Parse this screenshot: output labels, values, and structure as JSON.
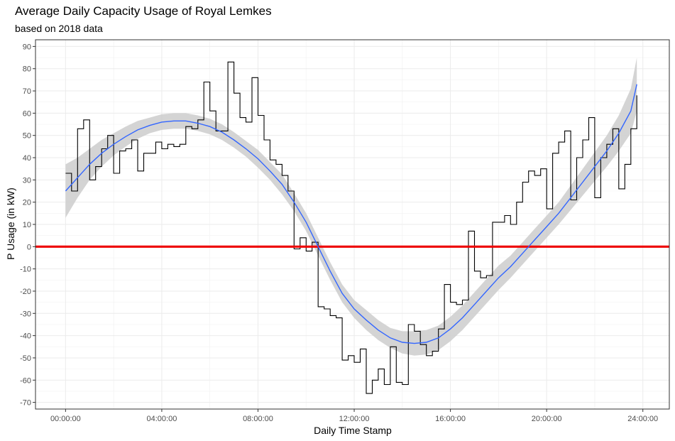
{
  "chart_data": {
    "type": "line",
    "title": "Average Daily Capacity Usage of Royal Lemkes",
    "subtitle": "based on 2018 data",
    "xlabel": "Daily Time Stamp",
    "ylabel": "P Usage (in kW)",
    "xlim_hours": [
      -1.25,
      25.1
    ],
    "ylim": [
      -73,
      93
    ],
    "x_ticks": [
      {
        "hour": 0,
        "label": "00:00:00"
      },
      {
        "hour": 4,
        "label": "04:00:00"
      },
      {
        "hour": 8,
        "label": "08:00:00"
      },
      {
        "hour": 12,
        "label": "12:00:00"
      },
      {
        "hour": 16,
        "label": "16:00:00"
      },
      {
        "hour": 20,
        "label": "20:00:00"
      },
      {
        "hour": 24,
        "label": "24:00:00"
      }
    ],
    "y_ticks": [
      90,
      80,
      70,
      60,
      50,
      40,
      30,
      20,
      10,
      0,
      -10,
      -20,
      -30,
      -40,
      -50,
      -60,
      -70
    ],
    "reference_line": {
      "y": 0,
      "color": "#ee0000"
    },
    "series": [
      {
        "type": "step",
        "color": "#000000",
        "step_hours": 0.25,
        "values": [
          33,
          25,
          53,
          57,
          30,
          36,
          44,
          50,
          33,
          43,
          44,
          48,
          34,
          42,
          42,
          47,
          44,
          46,
          45,
          46,
          54,
          53,
          57,
          74,
          61,
          52,
          52,
          83,
          69,
          58,
          56,
          76,
          59,
          48,
          39,
          37,
          32,
          25,
          -1,
          4,
          -2,
          2,
          -27,
          -28,
          -31,
          -32,
          -51,
          -49,
          -52,
          -46,
          -66,
          -60,
          -55,
          -62,
          -45,
          -61,
          -62,
          -35,
          -38,
          -44,
          -49,
          -47,
          -37,
          -17,
          -25,
          -26,
          -24,
          7,
          -11,
          -14,
          -13,
          11,
          11,
          14,
          10,
          20,
          29,
          34,
          32,
          35,
          17,
          42,
          47,
          52,
          21,
          40,
          48,
          58,
          22,
          40,
          46,
          53,
          26,
          37,
          53,
          68
        ]
      },
      {
        "type": "smooth",
        "color": "#3366ff",
        "band_color": "#cccccc",
        "x_hours": [
          0,
          0.5,
          1,
          1.5,
          2,
          2.5,
          3,
          3.5,
          4,
          4.5,
          5,
          5.5,
          6,
          6.5,
          7,
          7.5,
          8,
          8.5,
          9,
          9.5,
          10,
          10.5,
          11,
          11.5,
          12,
          12.5,
          13,
          13.5,
          14,
          14.5,
          15,
          15.5,
          16,
          16.5,
          17,
          17.5,
          18,
          18.5,
          19,
          19.5,
          20,
          20.5,
          21,
          21.5,
          22,
          22.5,
          23,
          23.5,
          23.75
        ],
        "fit": [
          25,
          31,
          37,
          42,
          46,
          49.5,
          52.5,
          54.5,
          56,
          56.5,
          56.5,
          55.5,
          54,
          51.5,
          48,
          44,
          39.5,
          34,
          28,
          20,
          11,
          0,
          -11,
          -21,
          -28,
          -33,
          -37.5,
          -41,
          -43,
          -43.5,
          -43,
          -41,
          -37,
          -32,
          -26,
          -20,
          -14,
          -9,
          -3,
          3,
          9,
          15,
          22,
          29,
          36,
          43,
          51,
          61,
          73
        ],
        "band_lower": [
          13,
          22,
          30,
          36,
          41,
          45,
          48.5,
          51,
          52.5,
          53,
          53,
          52,
          50.5,
          48,
          44.5,
          40.5,
          35.5,
          30,
          23.5,
          16,
          7,
          -4,
          -15,
          -25,
          -32,
          -37.5,
          -42,
          -45.5,
          -48,
          -49,
          -48.5,
          -46.5,
          -42.5,
          -37.5,
          -31.5,
          -25.5,
          -19.5,
          -14,
          -8,
          -2,
          4,
          10,
          16.5,
          23,
          29.5,
          36,
          43,
          51,
          61
        ],
        "band_upper": [
          37,
          40,
          44,
          48,
          51,
          54,
          56.5,
          58,
          59.5,
          60,
          60,
          59,
          57.5,
          55,
          51.5,
          47.5,
          43.5,
          38,
          32.5,
          24,
          15,
          4,
          -7,
          -17,
          -24,
          -28.5,
          -33,
          -36.5,
          -38,
          -38,
          -37.5,
          -35.5,
          -31.5,
          -26.5,
          -20.5,
          -14.5,
          -8.5,
          -4,
          2,
          8,
          14,
          20,
          27.5,
          35,
          42.5,
          50,
          59,
          71,
          85
        ]
      }
    ],
    "grid": true,
    "legend": "none"
  }
}
